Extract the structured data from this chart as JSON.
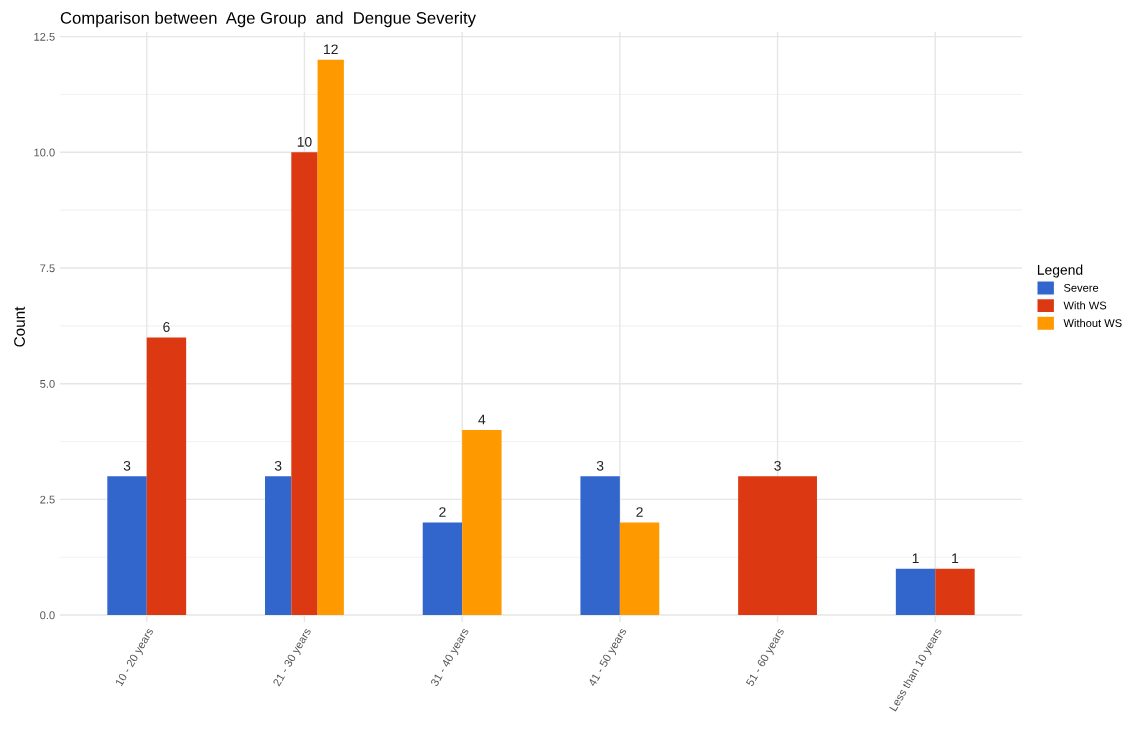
{
  "chart_data": {
    "type": "bar",
    "title": "Comparison between  Age Group  and  Dengue Severity",
    "ylabel": "Count",
    "legend_title": "Legend",
    "categories": [
      "10 - 20 years",
      "21 - 30 years",
      "31 - 40 years",
      "41 - 50 years",
      "51 - 60 years",
      "Less than 10 years"
    ],
    "series": [
      {
        "name": "Severe",
        "color": "#3366cc",
        "values": [
          3,
          3,
          2,
          3,
          null,
          1
        ]
      },
      {
        "name": "With WS",
        "color": "#dc3912",
        "values": [
          6,
          10,
          null,
          null,
          3,
          1
        ]
      },
      {
        "name": "Without WS",
        "color": "#ff9900",
        "values": [
          null,
          12,
          4,
          2,
          null,
          null
        ]
      }
    ],
    "ylim": [
      -0.15,
      12.6
    ],
    "yticks": [
      {
        "value": 0,
        "label": "0.0"
      },
      {
        "value": 2.5,
        "label": "2.5"
      },
      {
        "value": 5,
        "label": "5.0"
      },
      {
        "value": 7.5,
        "label": "7.5"
      },
      {
        "value": 10,
        "label": "10.0"
      },
      {
        "value": 12.5,
        "label": "12.5"
      }
    ],
    "grid": true,
    "legend": "right",
    "data_labels": true
  }
}
